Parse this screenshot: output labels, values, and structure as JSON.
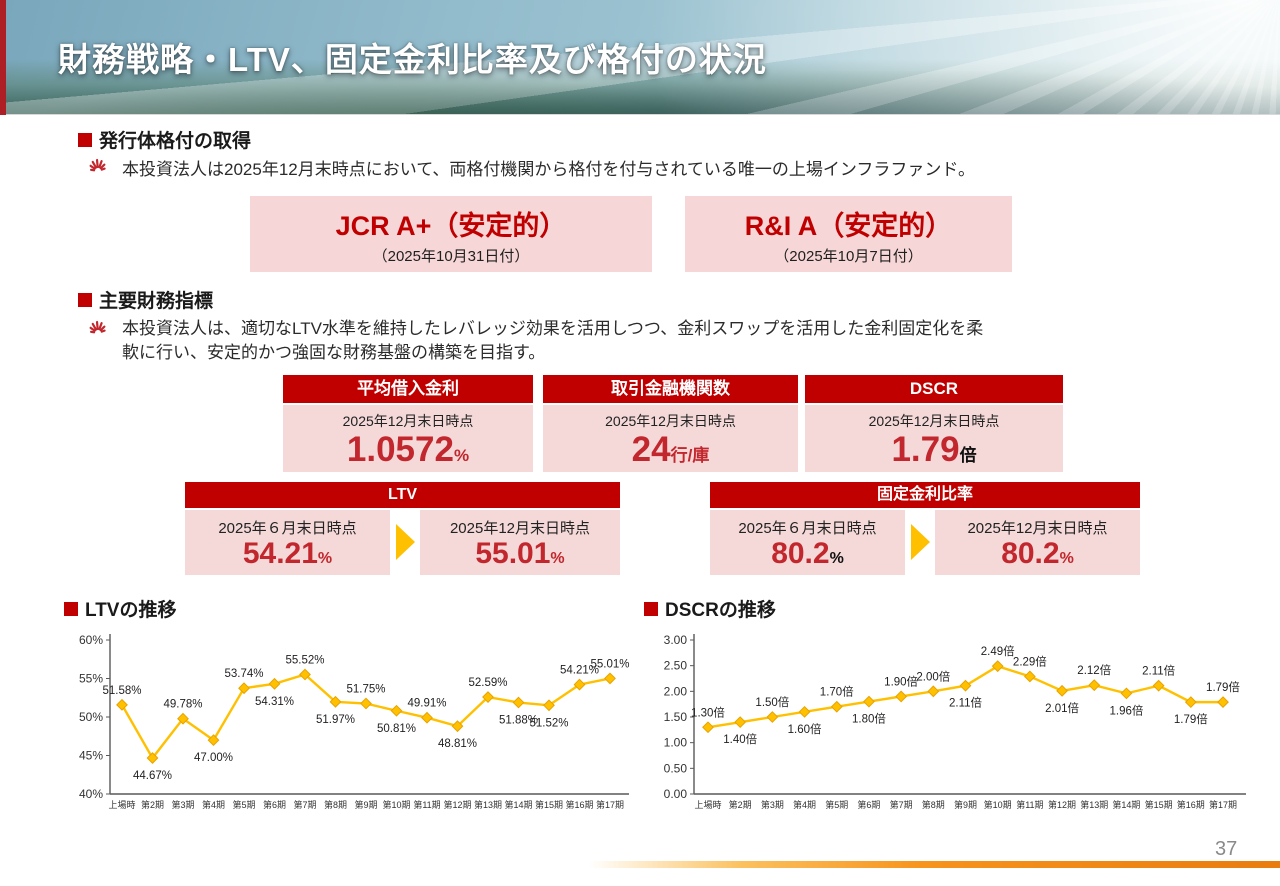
{
  "header": {
    "title": "財務戦略・LTV、固定金利比率及び格付の状況"
  },
  "colors": {
    "accent_red": "#C00000",
    "value_red": "#C1272D",
    "pink_bg": "#F5D8D8",
    "gold": "#FFC000",
    "footer_orange": "#F7941D"
  },
  "rating_section": {
    "heading": "発行体格付の取得",
    "note": "本投資法人は2025年12月末時点において、両格付機関から格付を付与されている唯一の上場インフラファンド。",
    "ratings": [
      {
        "agency_rating": "JCR A+（安定的）",
        "date": "（2025年10月31日付）"
      },
      {
        "agency_rating": "R&I A（安定的）",
        "date": "（2025年10月7日付）"
      }
    ]
  },
  "metrics_section": {
    "heading": "主要財務指標",
    "note_line1": "本投資法人は、適切なLTV水準を維持したレバレッジ効果を活用しつつ、金利スワップを活用した金利固定化を柔",
    "note_line2": "軟に行い、安定的かつ強固な財務基盤の構築を目指す。",
    "cards": [
      {
        "title": "平均借入金利",
        "as_of": "2025年12月末日時点",
        "value": "1.0572",
        "unit": "%"
      },
      {
        "title": "取引金融機関数",
        "as_of": "2025年12月末日時点",
        "value": "24",
        "unit": "行/庫"
      },
      {
        "title": "DSCR",
        "as_of": "2025年12月末日時点",
        "value": "1.79",
        "unit": "倍"
      }
    ],
    "comparisons": [
      {
        "title": "LTV",
        "from": {
          "as_of": "2025年６月末日時点",
          "value": "54.21",
          "unit": "%"
        },
        "to": {
          "as_of": "2025年12月末日時点",
          "value": "55.01",
          "unit": "%"
        }
      },
      {
        "title": "固定金利比率",
        "from": {
          "as_of": "2025年６月末日時点",
          "value": "80.2",
          "unit": "%"
        },
        "to": {
          "as_of": "2025年12月末日時点",
          "value": "80.2",
          "unit": "%"
        }
      }
    ]
  },
  "chart_data": [
    {
      "type": "line",
      "title": "LTVの推移",
      "categories": [
        "上場時",
        "第2期",
        "第3期",
        "第4期",
        "第5期",
        "第6期",
        "第7期",
        "第8期",
        "第9期",
        "第10期",
        "第11期",
        "第12期",
        "第13期",
        "第14期",
        "第15期",
        "第16期",
        "第17期"
      ],
      "values": [
        51.58,
        44.67,
        49.78,
        47.0,
        53.74,
        54.31,
        55.52,
        51.97,
        51.75,
        50.81,
        49.91,
        48.81,
        52.59,
        51.88,
        51.52,
        54.21,
        55.01
      ],
      "point_labels": [
        "51.58%",
        "44.67%",
        "49.78%",
        "47.00%",
        "53.74%",
        "54.31%",
        "55.52%",
        "51.97%",
        "51.75%",
        "50.81%",
        "49.91%",
        "48.81%",
        "52.59%",
        "51.88%",
        "51.52%",
        "54.21%",
        "55.01%"
      ],
      "label_side": [
        "above",
        "below",
        "above",
        "below",
        "above",
        "below",
        "above",
        "below",
        "above",
        "below",
        "above",
        "below",
        "above",
        "below",
        "below",
        "above",
        "above"
      ],
      "ylim": [
        40,
        60
      ],
      "ytick_step": 5,
      "yticks": [
        "40%",
        "45%",
        "50%",
        "55%",
        "60%"
      ],
      "xlabel": "",
      "ylabel": "",
      "grid": false,
      "legend": "none",
      "line_color": "#FFC000",
      "marker": "diamond"
    },
    {
      "type": "line",
      "title": "DSCRの推移",
      "categories": [
        "上場時",
        "第2期",
        "第3期",
        "第4期",
        "第5期",
        "第6期",
        "第7期",
        "第8期",
        "第9期",
        "第10期",
        "第11期",
        "第12期",
        "第13期",
        "第14期",
        "第15期",
        "第16期",
        "第17期"
      ],
      "values": [
        1.3,
        1.4,
        1.5,
        1.6,
        1.7,
        1.8,
        1.9,
        2.0,
        2.11,
        2.49,
        2.29,
        2.01,
        2.12,
        1.96,
        2.11,
        1.79,
        1.79
      ],
      "point_labels": [
        "1.30倍",
        "1.40倍",
        "1.50倍",
        "1.60倍",
        "1.70倍",
        "1.80倍",
        "1.90倍",
        "2.00倍",
        "2.11倍",
        "2.49倍",
        "2.29倍",
        "2.01倍",
        "2.12倍",
        "1.96倍",
        "2.11倍",
        "1.79倍",
        "1.79倍"
      ],
      "label_side": [
        "above",
        "below",
        "above",
        "below",
        "above",
        "below",
        "above",
        "above",
        "below",
        "above",
        "above",
        "below",
        "above",
        "below",
        "above",
        "below",
        "above"
      ],
      "ylim": [
        0,
        3
      ],
      "ytick_step": 0.5,
      "yticks": [
        "0.00",
        "0.50",
        "1.00",
        "1.50",
        "2.00",
        "2.50",
        "3.00"
      ],
      "xlabel": "",
      "ylabel": "",
      "grid": false,
      "legend": "none",
      "line_color": "#FFC000",
      "marker": "diamond"
    }
  ],
  "footer": {
    "page_number": "37"
  }
}
